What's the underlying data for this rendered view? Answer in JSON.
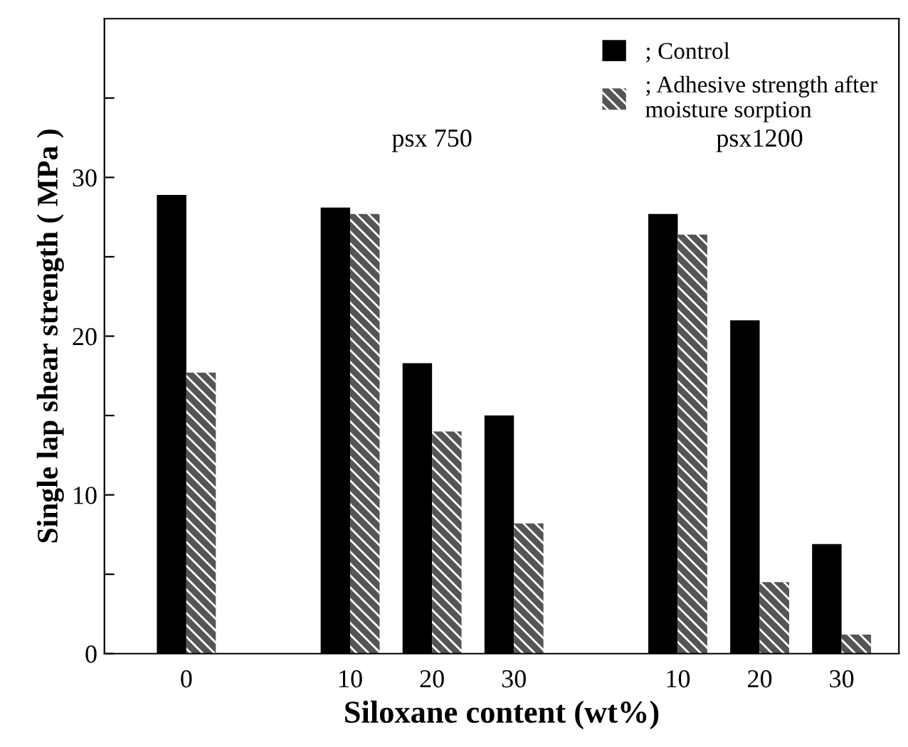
{
  "chart_data": {
    "type": "bar",
    "xlabel": "Siloxane content (wt%)",
    "ylabel": "Single lap shear strength ( MPa )",
    "categories": [
      "0",
      null,
      "10",
      "20",
      "30",
      null,
      "10",
      "20",
      "30"
    ],
    "series": [
      {
        "name": "; Control",
        "color": "#000000",
        "values": [
          28.9,
          null,
          28.1,
          18.3,
          15.0,
          null,
          27.7,
          21.0,
          6.9
        ]
      },
      {
        "name": "; Adhesive strength after\nmoisture sorption",
        "color": "#555555",
        "values": [
          17.7,
          null,
          27.7,
          14.0,
          8.2,
          null,
          26.4,
          4.5,
          1.2
        ]
      }
    ],
    "ylim": [
      0,
      40
    ],
    "yticks": [
      0,
      {
        "value": 5,
        "label": null
      },
      10,
      {
        "value": 15,
        "label": null
      },
      20,
      {
        "value": 25,
        "label": null
      },
      30,
      {
        "value": 35,
        "label": null
      }
    ],
    "annotations": [
      "psx 750",
      "psx1200"
    ],
    "legend": "top right",
    "grid": false
  }
}
